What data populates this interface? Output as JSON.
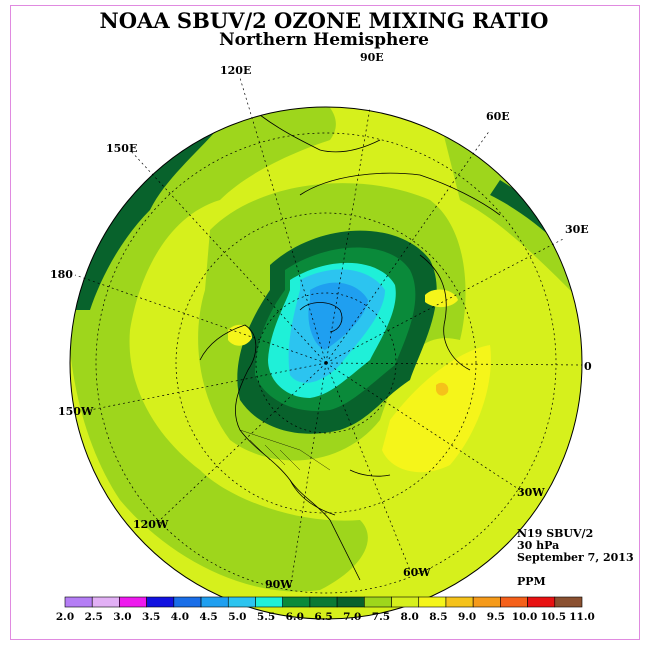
{
  "title": "NOAA SBUV/2 OZONE MIXING RATIO",
  "subtitle": "Northern Hemisphere",
  "longitude_labels": {
    "lon_90e": "90E",
    "lon_60e": "60E",
    "lon_30e": "30E",
    "lon_0": "0",
    "lon_30w": "30W",
    "lon_60w": "60W",
    "lon_90w": "90W",
    "lon_120w": "120W",
    "lon_150w": "150W",
    "lon_180": "180",
    "lon_150e": "150E",
    "lon_120e": "120E"
  },
  "info": {
    "instrument": "N19 SBUV/2",
    "level": "30 hPa",
    "date": "September 7, 2013",
    "units": "PPM"
  },
  "colorbar": {
    "ticks": [
      "2.0",
      "2.5",
      "3.0",
      "3.5",
      "4.0",
      "4.5",
      "5.0",
      "5.5",
      "6.0",
      "6.5",
      "7.0",
      "7.5",
      "8.0",
      "8.5",
      "9.0",
      "9.5",
      "10.0",
      "10.5",
      "11.0"
    ],
    "colors": [
      "#b57ef5",
      "#e2b0f5",
      "#ee1aee",
      "#1212e0",
      "#1a6ee8",
      "#1f9ff0",
      "#2cc4f0",
      "#1ff0d8",
      "#0a8a3a",
      "#0a7a34",
      "#08622c",
      "#9ed61c",
      "#d6f01c",
      "#f5f51a",
      "#f5c21a",
      "#f59a1a",
      "#f5601a",
      "#e81212",
      "#8a5030"
    ]
  }
}
